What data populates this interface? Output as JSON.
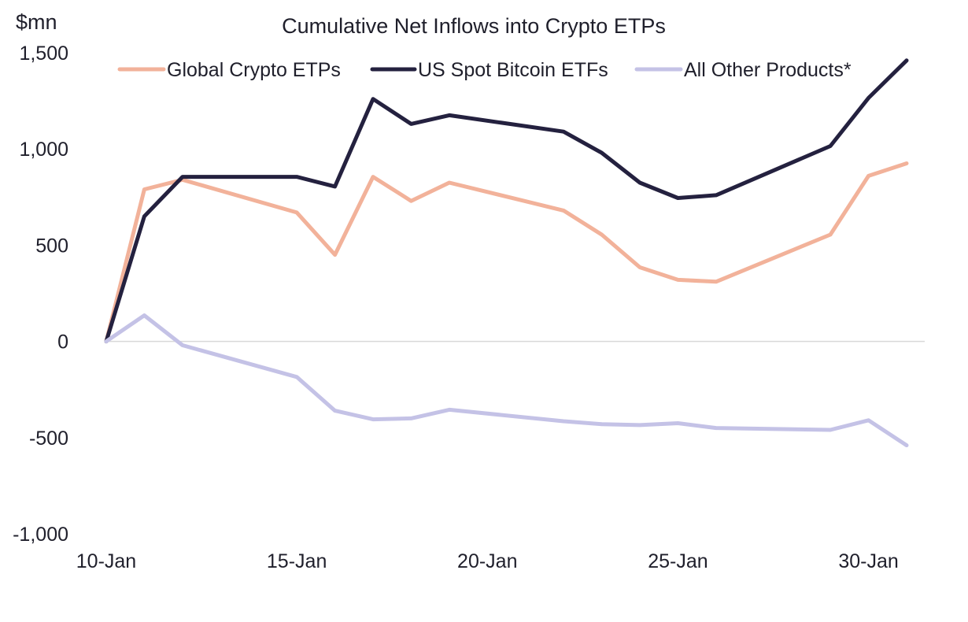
{
  "chart_data": {
    "type": "line",
    "title": "Cumulative Net Inflows into Crypto ETPs",
    "ylabel": "$mn",
    "xlabel": "",
    "ylim": [
      -1000,
      1500
    ],
    "yticks": [
      1500,
      1000,
      500,
      0,
      -500,
      -1000
    ],
    "ytick_labels": [
      "1,500",
      "1,000",
      "500",
      "0",
      "-500",
      "-1,000"
    ],
    "x_day_start": 10,
    "x_day_end": 31,
    "xticks": [
      10,
      15,
      20,
      25,
      30
    ],
    "xtick_labels": [
      "10-Jan",
      "15-Jan",
      "20-Jan",
      "25-Jan",
      "30-Jan"
    ],
    "legend_position": "top",
    "series": [
      {
        "name": "Global Crypto ETPs",
        "color": "#f2b29a",
        "x": [
          10,
          11,
          12,
          15,
          16,
          17,
          18,
          19,
          22,
          23,
          24,
          25,
          26,
          29,
          30,
          31
        ],
        "values": [
          0,
          790,
          840,
          670,
          450,
          855,
          730,
          825,
          680,
          555,
          385,
          320,
          310,
          555,
          860,
          925
        ]
      },
      {
        "name": "US Spot Bitcoin ETFs",
        "color": "#24213f",
        "x": [
          10,
          11,
          12,
          15,
          16,
          17,
          18,
          19,
          22,
          23,
          24,
          25,
          26,
          29,
          30,
          31
        ],
        "values": [
          0,
          650,
          855,
          855,
          805,
          1260,
          1130,
          1175,
          1090,
          980,
          825,
          745,
          760,
          1015,
          1265,
          1460
        ]
      },
      {
        "name": "All Other Products*",
        "color": "#c4c2e6",
        "x": [
          10,
          11,
          12,
          15,
          16,
          17,
          18,
          19,
          22,
          23,
          24,
          25,
          26,
          29,
          30,
          31
        ],
        "values": [
          0,
          135,
          -20,
          -185,
          -360,
          -405,
          -400,
          -355,
          -415,
          -430,
          -435,
          -425,
          -450,
          -460,
          -410,
          -540
        ]
      }
    ]
  }
}
